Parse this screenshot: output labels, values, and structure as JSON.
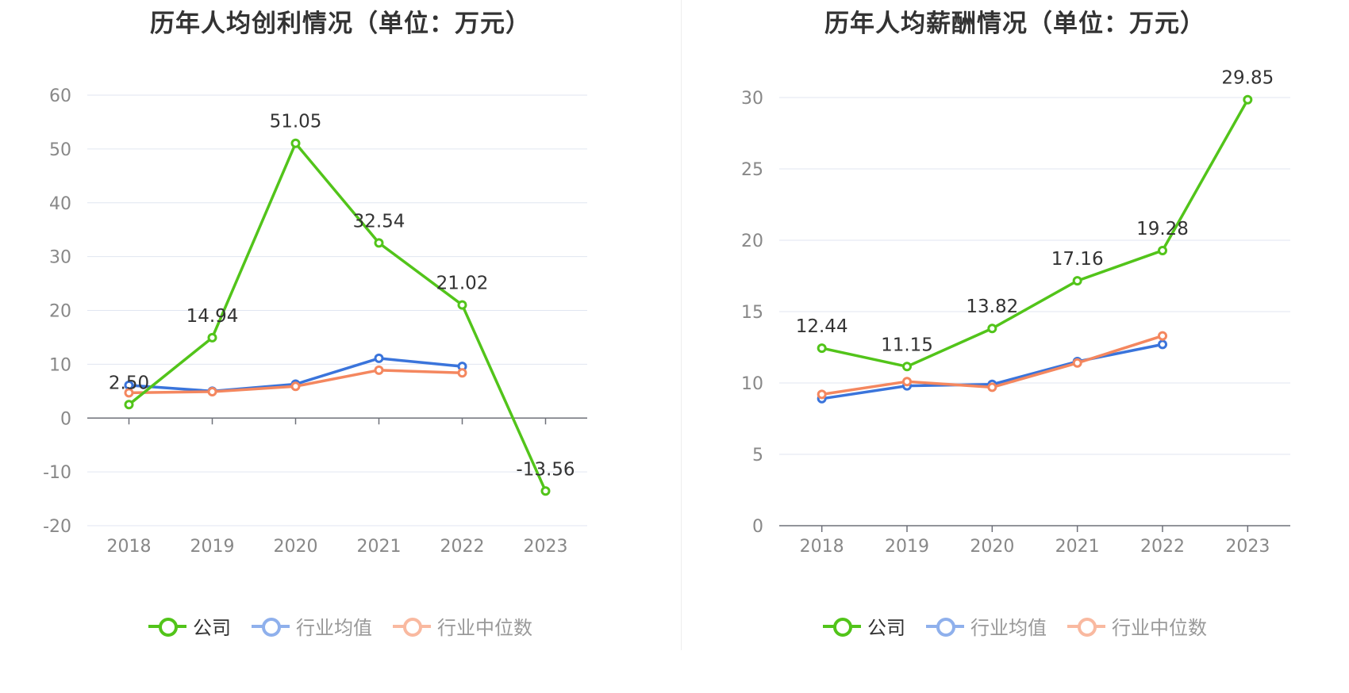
{
  "chart_data": [
    {
      "type": "line",
      "title": "历年人均创利情况（单位：万元）",
      "categories": [
        "2018",
        "2019",
        "2020",
        "2021",
        "2022",
        "2023"
      ],
      "ylim": [
        -20,
        60
      ],
      "yticks": [
        -20,
        -10,
        0,
        10,
        20,
        30,
        40,
        50,
        60
      ],
      "grid": true,
      "legend_position": "bottom",
      "series": [
        {
          "name": "公司",
          "color": "#52c41a",
          "values": [
            2.5,
            14.94,
            51.05,
            32.54,
            21.02,
            -13.56
          ],
          "labels": [
            "2.50",
            "14.94",
            "51.05",
            "32.54",
            "21.02",
            "-13.56"
          ]
        },
        {
          "name": "行业均值",
          "color": "#3a74db",
          "values": [
            6.1,
            5.0,
            6.3,
            11.1,
            9.6,
            null
          ]
        },
        {
          "name": "行业中位数",
          "color": "#f4875f",
          "values": [
            4.7,
            4.9,
            5.9,
            8.9,
            8.4,
            null
          ]
        }
      ]
    },
    {
      "type": "line",
      "title": "历年人均薪酬情况（单位：万元）",
      "categories": [
        "2018",
        "2019",
        "2020",
        "2021",
        "2022",
        "2023"
      ],
      "ylim": [
        0,
        30
      ],
      "yticks": [
        0,
        5,
        10,
        15,
        20,
        25,
        30
      ],
      "grid": true,
      "legend_position": "bottom",
      "series": [
        {
          "name": "公司",
          "color": "#52c41a",
          "values": [
            12.44,
            11.15,
            13.82,
            17.16,
            19.28,
            29.85
          ],
          "labels": [
            "12.44",
            "11.15",
            "13.82",
            "17.16",
            "19.28",
            "29.85"
          ]
        },
        {
          "name": "行业均值",
          "color": "#3a74db",
          "values": [
            8.9,
            9.8,
            9.9,
            11.5,
            12.7,
            null
          ]
        },
        {
          "name": "行业中位数",
          "color": "#f4875f",
          "values": [
            9.2,
            10.1,
            9.7,
            11.4,
            13.3,
            null
          ]
        }
      ]
    }
  ],
  "legend_colors": [
    "#52c41a",
    "#8fb0ec",
    "#f9b9a0"
  ]
}
